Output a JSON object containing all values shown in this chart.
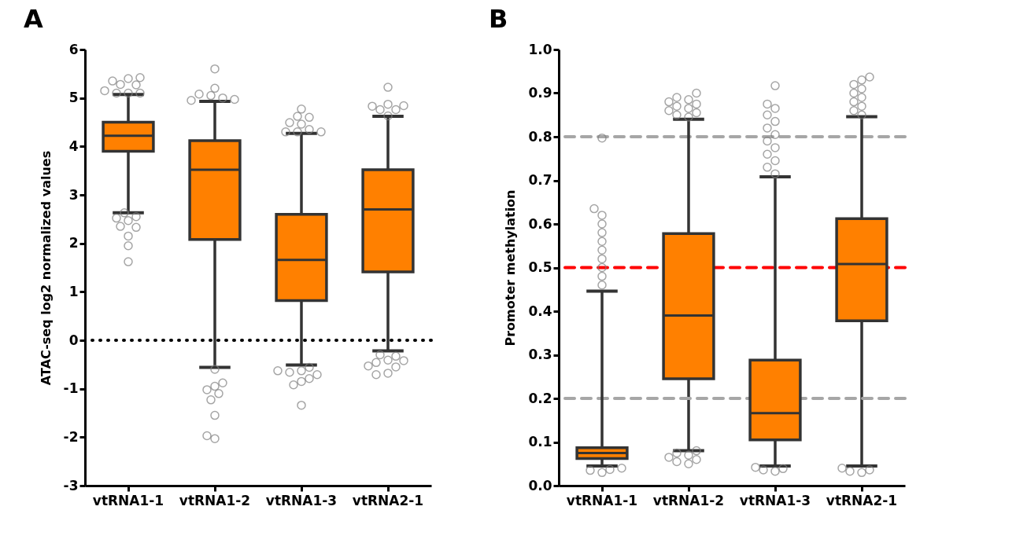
{
  "chart_data": [
    {
      "type": "box",
      "title": "A",
      "ylabel": "ATAC-seq log2 normalized values",
      "categories": [
        "vtRNA1-1",
        "vtRNA1-2",
        "vtRNA1-3",
        "vtRNA2-1"
      ],
      "ylim": [
        -3,
        6
      ],
      "yticks": [
        -3,
        -2,
        -1,
        0,
        1,
        2,
        3,
        4,
        5,
        6
      ],
      "series": [
        {
          "color": "#ff8000",
          "boxes": [
            {
              "low": 2.63,
              "q1": 3.9,
              "median": 4.22,
              "q3": 4.5,
              "high": 5.07,
              "outliers": [
                5.4,
                5.28,
                5.42,
                5.35,
                5.27,
                5.1,
                5.1,
                5.1,
                5.15,
                2.47,
                2.52,
                2.55,
                2.63,
                2.35,
                2.33,
                2.15,
                1.95,
                1.62
              ]
            },
            {
              "low": -0.56,
              "q1": 2.08,
              "median": 3.52,
              "q3": 4.12,
              "high": 4.93,
              "outliers": [
                5.6,
                5.2,
                5.05,
                5.0,
                5.08,
                4.97,
                4.95,
                -0.6,
                -0.95,
                -1.02,
                -0.88,
                -1.1,
                -1.23,
                -1.55,
                -2.03,
                -1.97
              ]
            },
            {
              "low": -0.51,
              "q1": 0.82,
              "median": 1.66,
              "q3": 2.6,
              "high": 4.27,
              "outliers": [
                4.77,
                4.62,
                4.6,
                4.46,
                4.49,
                4.35,
                4.3,
                4.3,
                4.3,
                -0.63,
                -0.66,
                -0.85,
                -0.56,
                -0.79,
                -0.71,
                -0.92,
                -0.63,
                -1.34
              ]
            },
            {
              "low": -0.22,
              "q1": 1.41,
              "median": 2.7,
              "q3": 3.52,
              "high": 4.62,
              "outliers": [
                5.22,
                4.87,
                4.76,
                4.76,
                4.83,
                4.84,
                4.63,
                -0.41,
                -0.46,
                -0.33,
                -0.3,
                -0.55,
                -0.53,
                -0.42,
                -0.68,
                -0.71
              ]
            }
          ]
        }
      ],
      "ref_lines": [
        {
          "axis": "y",
          "value": 0,
          "color": "#000000",
          "line_style": "dotted"
        }
      ]
    },
    {
      "type": "box",
      "title": "B",
      "ylabel": "Promoter methylation",
      "categories": [
        "vtRNA1-1",
        "vtRNA1-2",
        "vtRNA1-3",
        "vtRNA2-1"
      ],
      "ylim": [
        0,
        1
      ],
      "yticks": [
        {
          "value": 0,
          "label": "0.0"
        },
        0.1,
        0.2,
        0.3,
        0.4,
        0.5,
        0.6,
        0.7,
        0.8,
        0.9,
        {
          "value": 1,
          "label": "1.0"
        }
      ],
      "series": [
        {
          "color": "#ff8000",
          "boxes": [
            {
              "low": 0.045,
              "q1": 0.062,
              "median": 0.075,
              "q3": 0.087,
              "high": 0.446,
              "outliers": [
                0.03,
                0.035,
                0.037,
                0.04,
                0.46,
                0.48,
                0.5,
                0.52,
                0.54,
                0.56,
                0.58,
                0.6,
                0.62,
                0.635,
                0.797
              ]
            },
            {
              "low": 0.08,
              "q1": 0.245,
              "median": 0.39,
              "q3": 0.578,
              "high": 0.84,
              "outliers": [
                0.05,
                0.055,
                0.06,
                0.065,
                0.07,
                0.075,
                0.08,
                0.845,
                0.85,
                0.855,
                0.86,
                0.865,
                0.87,
                0.875,
                0.88,
                0.885,
                0.89,
                0.9
              ]
            },
            {
              "low": 0.045,
              "q1": 0.105,
              "median": 0.166,
              "q3": 0.288,
              "high": 0.708,
              "outliers": [
                0.033,
                0.036,
                0.039,
                0.042,
                0.715,
                0.73,
                0.745,
                0.76,
                0.775,
                0.79,
                0.805,
                0.82,
                0.835,
                0.85,
                0.865,
                0.875,
                0.917
              ]
            },
            {
              "low": 0.045,
              "q1": 0.378,
              "median": 0.508,
              "q3": 0.612,
              "high": 0.846,
              "outliers": [
                0.03,
                0.033,
                0.036,
                0.04,
                0.85,
                0.86,
                0.87,
                0.88,
                0.89,
                0.9,
                0.91,
                0.92,
                0.93,
                0.937
              ]
            }
          ]
        }
      ],
      "ref_lines": [
        {
          "axis": "y",
          "value": 0.8,
          "color": "#a6a6a6",
          "line_style": "dashed"
        },
        {
          "axis": "y",
          "value": 0.5,
          "color": "#ff0000",
          "line_style": "dashed"
        },
        {
          "axis": "y",
          "value": 0.2,
          "color": "#a6a6a6",
          "line_style": "dashed"
        }
      ]
    }
  ]
}
